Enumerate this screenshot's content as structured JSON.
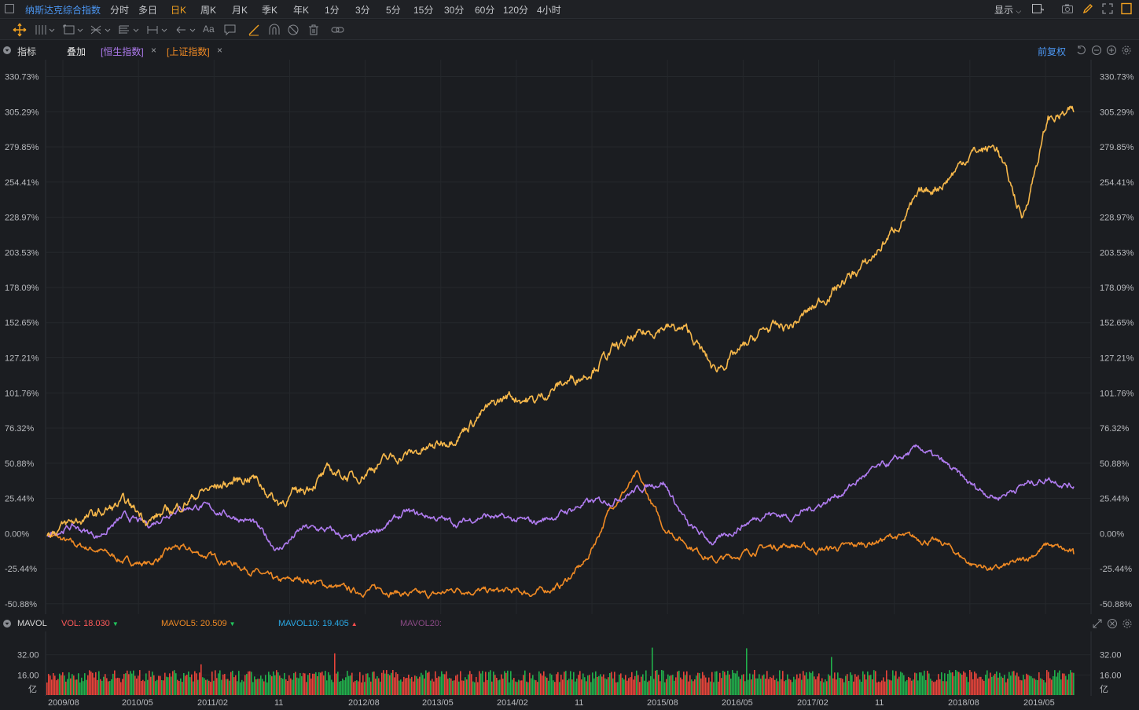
{
  "header": {
    "title": "纳斯达克综合指数",
    "periods": [
      "分时",
      "多日",
      "日K",
      "周K",
      "月K",
      "季K",
      "年K",
      "1分",
      "3分",
      "5分",
      "15分",
      "30分",
      "60分",
      "120分",
      "4小时"
    ],
    "active_period": "日K",
    "display_label": "显示"
  },
  "legend": {
    "indicator_label": "指标",
    "overlay_label": "叠加",
    "overlays": [
      {
        "label": "[恒生指数]",
        "color": "#b07cf0"
      },
      {
        "label": "[上证指数]",
        "color": "#f08a24"
      }
    ],
    "close_glyph": "×",
    "adjust_label": "前复权"
  },
  "chart_data": [
    {
      "type": "line",
      "title": "",
      "ylabel": "",
      "y_ticks": [
        "330.73%",
        "305.29%",
        "279.85%",
        "254.41%",
        "228.97%",
        "203.53%",
        "178.09%",
        "152.65%",
        "127.21%",
        "101.76%",
        "76.32%",
        "50.88%",
        "25.44%",
        "0.00%",
        "-25.44%",
        "-50.88%"
      ],
      "ylim": [
        -55,
        335
      ],
      "x_ticks": [
        "2009/08",
        "2010/05",
        "2011/02",
        "11",
        "2012/08",
        "2013/05",
        "2014/02",
        "11",
        "2015/08",
        "2016/05",
        "2017/02",
        "11",
        "2018/08",
        "2019/05"
      ],
      "x": [
        "2009/07",
        "2009/10",
        "2010/01",
        "2010/04",
        "2010/07",
        "2010/10",
        "2011/01",
        "2011/04",
        "2011/07",
        "2011/10",
        "2012/01",
        "2012/04",
        "2012/07",
        "2012/10",
        "2013/01",
        "2013/04",
        "2013/07",
        "2013/10",
        "2014/01",
        "2014/04",
        "2014/07",
        "2014/10",
        "2015/01",
        "2015/04",
        "2015/07",
        "2015/10",
        "2016/01",
        "2016/04",
        "2016/07",
        "2016/10",
        "2017/01",
        "2017/04",
        "2017/07",
        "2017/10",
        "2018/01",
        "2018/04",
        "2018/07",
        "2018/10",
        "2019/01",
        "2019/04",
        "2019/07"
      ],
      "series": [
        {
          "name": "纳斯达克综合指数",
          "color": "#f7b84b",
          "values": [
            0,
            8,
            14,
            22,
            10,
            18,
            30,
            36,
            42,
            22,
            32,
            45,
            40,
            52,
            57,
            62,
            72,
            88,
            100,
            96,
            108,
            116,
            132,
            142,
            150,
            146,
            118,
            132,
            148,
            150,
            166,
            182,
            196,
            220,
            244,
            255,
            276,
            280,
            228,
            300,
            305
          ]
        },
        {
          "name": "恒生指数",
          "color": "#b07cf0",
          "values": [
            0,
            5,
            -2,
            12,
            6,
            18,
            20,
            14,
            8,
            -12,
            4,
            2,
            -6,
            4,
            15,
            12,
            7,
            13,
            10,
            8,
            14,
            22,
            24,
            32,
            38,
            5,
            -7,
            5,
            15,
            12,
            20,
            30,
            44,
            52,
            62,
            50,
            35,
            26,
            35,
            40,
            34
          ]
        },
        {
          "name": "上证指数",
          "color": "#f08a24",
          "values": [
            0,
            -8,
            -12,
            -20,
            -22,
            -10,
            -15,
            -20,
            -27,
            -35,
            -33,
            -38,
            -42,
            -40,
            -44,
            -45,
            -40,
            -42,
            -42,
            -43,
            -38,
            -20,
            20,
            42,
            5,
            -8,
            -20,
            -15,
            -10,
            -8,
            -12,
            -10,
            -7,
            -2,
            -4,
            -8,
            -22,
            -26,
            -20,
            -8,
            -15
          ]
        }
      ]
    },
    {
      "type": "bar",
      "title": "MAVOL",
      "y_ticks": [
        "32.00",
        "16.00"
      ],
      "unit": "亿",
      "ylim": [
        0,
        48
      ],
      "indicators": [
        {
          "label": "VOL: 18.030",
          "color": "#ff5a5a",
          "arrow": "▼",
          "arrow_color": "#21c55d"
        },
        {
          "label": "MAVOL5: 20.509",
          "color": "#f08a24",
          "arrow": "▼",
          "arrow_color": "#21c55d"
        },
        {
          "label": "MAVOL10: 19.405",
          "color": "#2aa9e6",
          "arrow": "▲",
          "arrow_color": "#ff4d4d"
        },
        {
          "label": "MAVOL20:",
          "color": "#8c4a86",
          "arrow": "",
          "arrow_color": ""
        }
      ],
      "up_color": "#e8443a",
      "down_color": "#21b04b"
    }
  ]
}
